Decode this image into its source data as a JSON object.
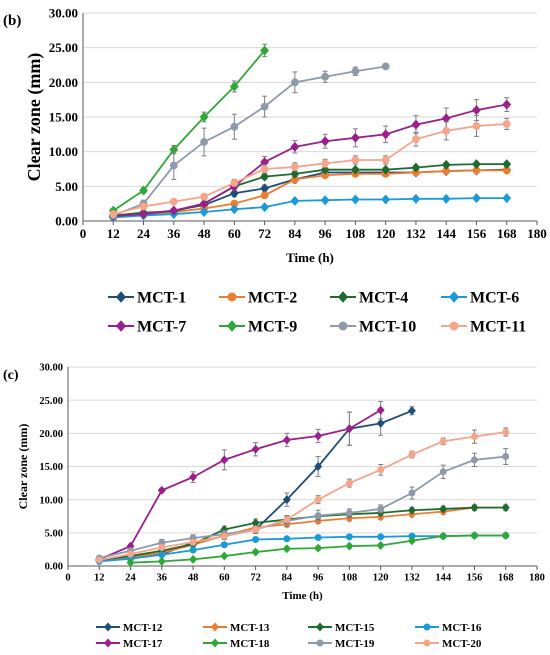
{
  "chart_data": [
    {
      "type": "line",
      "panel_label": "(b)",
      "title": "",
      "xlabel": "Time (h)",
      "ylabel": "Clear zone (mm)",
      "xlim": [
        0,
        180
      ],
      "ylim": [
        0,
        30
      ],
      "x_ticks": [
        0,
        12,
        24,
        36,
        48,
        60,
        72,
        84,
        96,
        108,
        120,
        132,
        144,
        156,
        168,
        180
      ],
      "y_ticks": [
        "0.00",
        "5.00",
        "10.00",
        "15.00",
        "20.00",
        "25.00",
        "30.00"
      ],
      "y_tick_values": [
        0,
        5,
        10,
        15,
        20,
        25,
        30
      ],
      "grid": true,
      "legend_position": "bottom",
      "series": [
        {
          "name": "MCT-1",
          "color": "#1f4e79",
          "marker": "diamond",
          "x": [
            12,
            24,
            36,
            48,
            60,
            72,
            84,
            96,
            108,
            120,
            132,
            144,
            156,
            168
          ],
          "y": [
            0.6,
            1.1,
            1.5,
            2.3,
            4.0,
            4.7,
            6.0,
            7.0,
            7.0,
            7.0,
            7.0,
            7.2,
            7.3,
            7.4
          ],
          "err": [
            0.2,
            0.2,
            0.3,
            0.3,
            0.5,
            0.5,
            0.5,
            0.3,
            0.3,
            0.3,
            0.3,
            0.3,
            0.3,
            0.3
          ]
        },
        {
          "name": "MCT-2",
          "color": "#ed7d31",
          "marker": "circle",
          "x": [
            12,
            24,
            36,
            48,
            60,
            72,
            84,
            96,
            108,
            120,
            132,
            144,
            156,
            168
          ],
          "y": [
            0.5,
            1.0,
            1.3,
            1.8,
            2.5,
            3.7,
            6.0,
            6.6,
            6.8,
            6.8,
            7.0,
            7.2,
            7.3,
            7.3
          ],
          "err": [
            0.2,
            0.2,
            0.2,
            0.3,
            0.3,
            0.4,
            0.5,
            0.3,
            0.3,
            0.3,
            0.3,
            0.3,
            0.3,
            0.3
          ]
        },
        {
          "name": "MCT-4",
          "color": "#1e6b2f",
          "marker": "diamond",
          "x": [
            12,
            24,
            36,
            48,
            60,
            72,
            84,
            96,
            108,
            120,
            132,
            144,
            156,
            168
          ],
          "y": [
            0.8,
            1.2,
            1.4,
            2.5,
            5.0,
            6.4,
            6.8,
            7.4,
            7.4,
            7.4,
            7.7,
            8.1,
            8.2,
            8.2
          ],
          "err": [
            0.2,
            0.2,
            0.2,
            0.3,
            0.4,
            0.4,
            0.4,
            0.3,
            0.3,
            0.3,
            0.3,
            0.3,
            0.3,
            0.3
          ]
        },
        {
          "name": "MCT-6",
          "color": "#1a9bd7",
          "marker": "diamond",
          "x": [
            12,
            24,
            36,
            48,
            60,
            72,
            84,
            96,
            108,
            120,
            132,
            144,
            156,
            168
          ],
          "y": [
            0.5,
            0.8,
            1.0,
            1.3,
            1.7,
            2.0,
            2.9,
            3.0,
            3.1,
            3.1,
            3.2,
            3.2,
            3.3,
            3.3
          ],
          "err": [
            0.1,
            0.1,
            0.1,
            0.2,
            0.2,
            0.2,
            0.2,
            0.2,
            0.2,
            0.2,
            0.2,
            0.2,
            0.2,
            0.2
          ]
        },
        {
          "name": "MCT-7",
          "color": "#9b1f8c",
          "marker": "diamond",
          "x": [
            12,
            24,
            36,
            48,
            60,
            72,
            84,
            96,
            108,
            120,
            132,
            144,
            156,
            168
          ],
          "y": [
            0.7,
            1.0,
            1.5,
            2.5,
            5.0,
            8.5,
            10.7,
            11.5,
            12.0,
            12.5,
            13.9,
            14.8,
            16.0,
            16.8
          ],
          "err": [
            0.2,
            0.2,
            0.3,
            0.3,
            0.6,
            0.8,
            0.9,
            1.0,
            1.3,
            1.2,
            1.3,
            1.5,
            1.5,
            1.0
          ]
        },
        {
          "name": "MCT-9",
          "color": "#2ea836",
          "marker": "diamond",
          "x": [
            12,
            24,
            36,
            48,
            60,
            72
          ],
          "y": [
            1.5,
            4.4,
            10.3,
            15.0,
            19.4,
            24.6
          ],
          "err": [
            0.3,
            0.4,
            0.6,
            0.7,
            0.8,
            0.9
          ]
        },
        {
          "name": "MCT-10",
          "color": "#8e9aaa",
          "marker": "circle",
          "x": [
            12,
            24,
            36,
            48,
            60,
            72,
            84,
            96,
            108,
            120
          ],
          "y": [
            0.8,
            2.5,
            8.0,
            11.4,
            13.6,
            16.5,
            20.0,
            20.8,
            21.6,
            22.3
          ],
          "err": [
            0.3,
            0.5,
            2.0,
            2.0,
            1.8,
            1.5,
            1.5,
            0.8,
            0.6,
            0.3
          ]
        },
        {
          "name": "MCT-11",
          "color": "#f4a58a",
          "marker": "circle",
          "x": [
            12,
            24,
            36,
            48,
            60,
            72,
            84,
            96,
            108,
            120,
            132,
            144,
            156,
            168
          ],
          "y": [
            1.0,
            2.1,
            2.8,
            3.5,
            5.5,
            7.5,
            7.8,
            8.3,
            8.8,
            8.8,
            11.8,
            13.0,
            13.7,
            14.0
          ],
          "err": [
            0.2,
            0.3,
            0.3,
            0.4,
            0.5,
            0.6,
            0.6,
            0.6,
            0.6,
            0.6,
            1.0,
            1.3,
            1.5,
            0.8
          ]
        }
      ]
    },
    {
      "type": "line",
      "panel_label": "(c)",
      "title": "",
      "xlabel": "Time (h)",
      "ylabel": "Clear zone (mm)",
      "xlim": [
        0,
        180
      ],
      "ylim": [
        0,
        30
      ],
      "x_ticks": [
        0,
        12,
        24,
        36,
        48,
        60,
        72,
        84,
        96,
        108,
        120,
        132,
        144,
        156,
        168,
        180
      ],
      "y_ticks": [
        "0.00",
        "5.00",
        "10.00",
        "15.00",
        "20.00",
        "25.00",
        "30.00"
      ],
      "y_tick_values": [
        0,
        5,
        10,
        15,
        20,
        25,
        30
      ],
      "grid": true,
      "legend_position": "bottom",
      "series": [
        {
          "name": "MCT-12",
          "color": "#1f4e79",
          "marker": "diamond",
          "x": [
            12,
            24,
            36,
            48,
            60,
            72,
            84,
            96,
            108,
            120,
            132
          ],
          "y": [
            0.8,
            1.2,
            1.8,
            3.5,
            4.5,
            5.5,
            10.0,
            15.0,
            20.7,
            21.5,
            23.4
          ],
          "err": [
            0.2,
            0.2,
            0.3,
            0.4,
            0.5,
            0.5,
            1.0,
            1.5,
            2.5,
            1.8,
            0.6
          ]
        },
        {
          "name": "MCT-13",
          "color": "#ed7d31",
          "marker": "diamond",
          "x": [
            12,
            24,
            36,
            48,
            60,
            72,
            84,
            96,
            108,
            120,
            132,
            144,
            156,
            168
          ],
          "y": [
            0.8,
            1.3,
            2.0,
            3.2,
            4.6,
            5.8,
            6.3,
            6.8,
            7.2,
            7.4,
            7.8,
            8.2,
            8.8,
            8.8
          ],
          "err": [
            0.2,
            0.2,
            0.3,
            0.4,
            0.4,
            0.4,
            0.4,
            0.4,
            0.4,
            0.4,
            0.4,
            0.4,
            0.4,
            0.4
          ]
        },
        {
          "name": "MCT-15",
          "color": "#1e6b2f",
          "marker": "diamond",
          "x": [
            12,
            24,
            36,
            48,
            60,
            72,
            84,
            96,
            108,
            120,
            132,
            144,
            156,
            168
          ],
          "y": [
            0.9,
            1.5,
            2.3,
            3.3,
            5.5,
            6.5,
            7.0,
            7.5,
            7.8,
            8.0,
            8.4,
            8.6,
            8.8,
            8.8
          ],
          "err": [
            0.2,
            0.2,
            0.3,
            0.4,
            0.5,
            0.6,
            0.5,
            0.4,
            0.4,
            0.4,
            0.4,
            0.4,
            0.4,
            0.4
          ]
        },
        {
          "name": "MCT-16",
          "color": "#1a9bd7",
          "marker": "circle",
          "x": [
            12,
            24,
            36,
            48,
            60,
            72,
            84,
            96,
            108,
            120,
            132,
            144,
            156,
            168
          ],
          "y": [
            0.7,
            1.1,
            1.7,
            2.4,
            3.2,
            4.0,
            4.1,
            4.3,
            4.4,
            4.4,
            4.5,
            4.5,
            4.6,
            4.6
          ],
          "err": [
            0.2,
            0.2,
            0.3,
            0.3,
            0.3,
            0.3,
            0.3,
            0.3,
            0.3,
            0.3,
            0.3,
            0.3,
            0.3,
            0.3
          ]
        },
        {
          "name": "MCT-17",
          "color": "#9b1f8c",
          "marker": "diamond",
          "x": [
            12,
            24,
            36,
            48,
            60,
            72,
            84,
            96,
            108,
            120
          ],
          "y": [
            1.0,
            3.0,
            11.4,
            13.4,
            16.0,
            17.6,
            19.0,
            19.6,
            20.7,
            23.5
          ],
          "err": [
            0.3,
            0.3,
            0.3,
            0.8,
            1.5,
            1.0,
            1.0,
            1.0,
            2.5,
            1.3
          ]
        },
        {
          "name": "MCT-18",
          "color": "#2ea836",
          "marker": "diamond",
          "x": [
            24,
            36,
            48,
            60,
            72,
            84,
            96,
            108,
            120,
            132,
            144,
            156,
            168
          ],
          "y": [
            0.5,
            0.7,
            1.0,
            1.5,
            2.1,
            2.6,
            2.7,
            3.0,
            3.1,
            3.8,
            4.5,
            4.6,
            4.6
          ],
          "err": [
            0.1,
            0.1,
            0.2,
            0.2,
            0.3,
            0.3,
            0.3,
            0.3,
            0.3,
            0.3,
            0.3,
            0.3,
            0.3
          ]
        },
        {
          "name": "MCT-19",
          "color": "#8e9aaa",
          "marker": "circle",
          "x": [
            12,
            24,
            36,
            48,
            60,
            72,
            84,
            96,
            108,
            120,
            132,
            144,
            156,
            168
          ],
          "y": [
            1.2,
            2.3,
            3.5,
            4.2,
            4.8,
            5.5,
            6.8,
            7.6,
            8.0,
            8.6,
            11.0,
            14.2,
            16.0,
            16.5
          ],
          "err": [
            0.3,
            0.3,
            0.5,
            0.5,
            0.6,
            0.6,
            0.8,
            0.8,
            0.6,
            0.6,
            0.9,
            1.0,
            1.0,
            1.2
          ]
        },
        {
          "name": "MCT-20",
          "color": "#f4a58a",
          "marker": "circle",
          "x": [
            12,
            24,
            36,
            48,
            60,
            72,
            84,
            96,
            108,
            120,
            132,
            144,
            156,
            168
          ],
          "y": [
            0.9,
            1.8,
            2.8,
            3.6,
            4.5,
            5.5,
            7.0,
            10.0,
            12.5,
            14.5,
            16.8,
            18.8,
            19.5,
            20.2
          ],
          "err": [
            0.2,
            0.3,
            0.4,
            0.5,
            0.5,
            0.6,
            0.6,
            0.6,
            0.6,
            0.8,
            0.5,
            0.5,
            1.0,
            0.6
          ]
        }
      ]
    }
  ]
}
